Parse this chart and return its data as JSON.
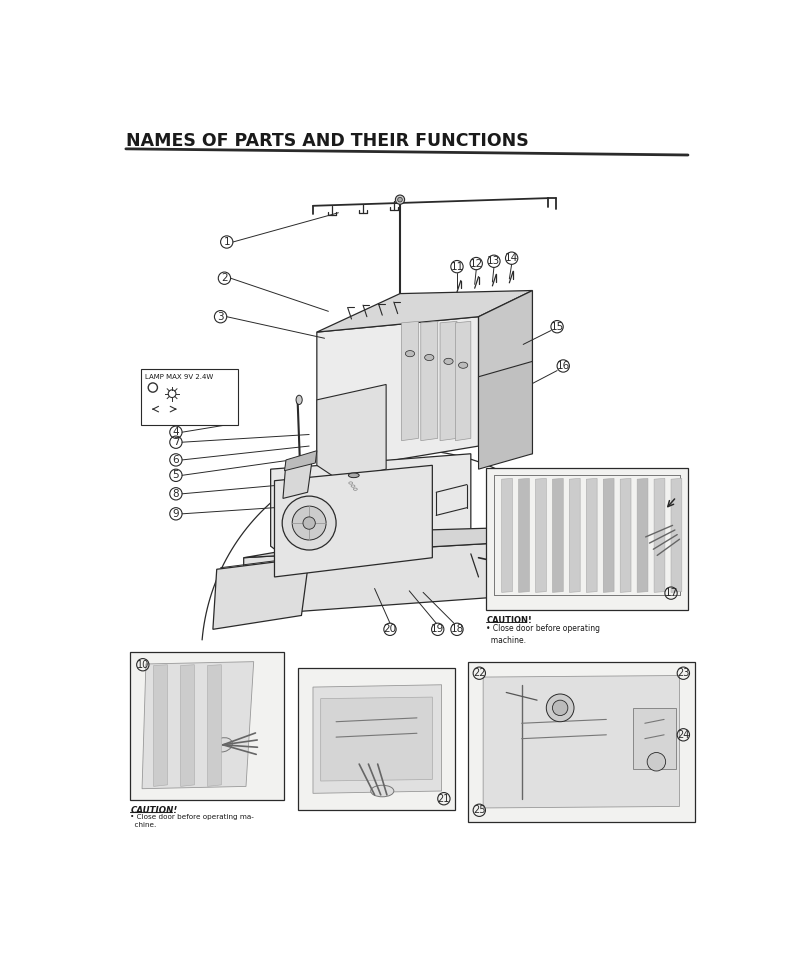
{
  "title": "NAMES OF PARTS AND THEIR FUNCTIONS",
  "bg_color": "#ffffff",
  "line_color": "#2a2a2a",
  "text_color": "#1a1a1a",
  "title_fontsize": 12.5,
  "label_fontsize": 8,
  "caution_text_1": "CAUTION!\n• Close door before operating\n  machine.",
  "caution_text_2": "CAUTION!\n• Close door before operating ma-\n  chine.",
  "lamp_text": "LAMP MAX 9V 2.4W",
  "numbers": [
    1,
    2,
    3,
    4,
    5,
    6,
    7,
    8,
    9,
    10,
    11,
    12,
    13,
    14,
    15,
    16,
    17,
    18,
    19,
    20,
    21,
    22,
    23,
    24,
    25
  ]
}
